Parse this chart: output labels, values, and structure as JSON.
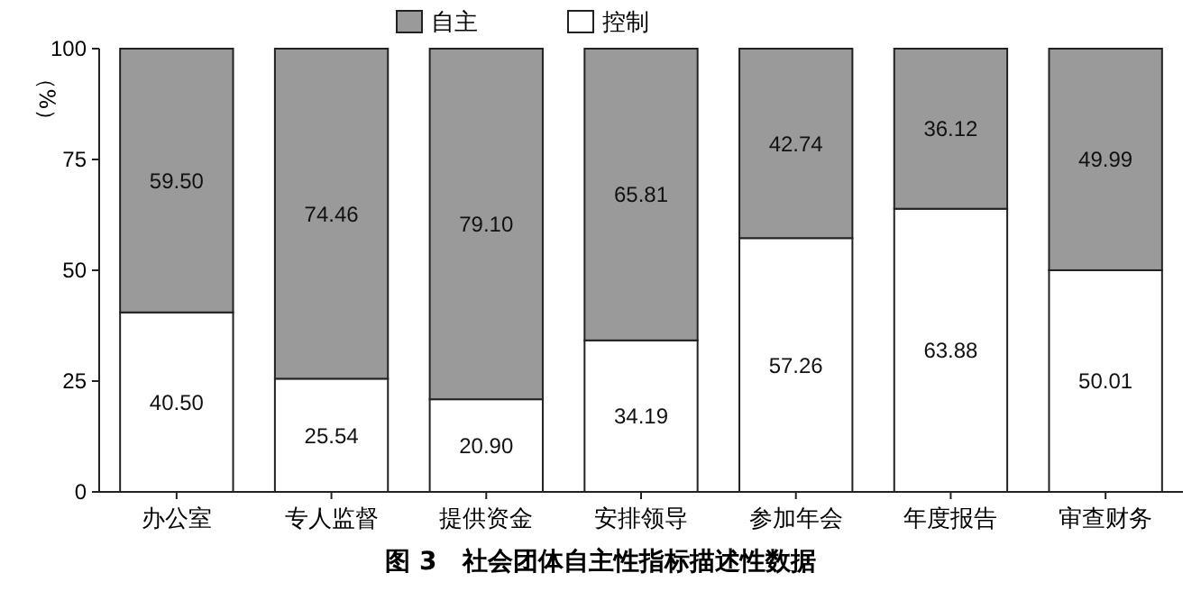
{
  "chart_data": {
    "type": "bar",
    "title": "图 3　社会团体自主性指标描述性数据",
    "ylabel": "（%）",
    "categories": [
      "办公室",
      "专人监督",
      "提供资金",
      "安排领导",
      "参加年会",
      "年度报告",
      "审查财务"
    ],
    "series": [
      {
        "name": "控制",
        "color": "#ffffff",
        "values": [
          40.5,
          25.54,
          20.9,
          34.19,
          57.26,
          63.88,
          50.01
        ],
        "value_labels": [
          "40.50",
          "25.54",
          "20.90",
          "34.19",
          "57.26",
          "63.88",
          "50.01"
        ]
      },
      {
        "name": "自主",
        "color": "#9a9a9a",
        "values": [
          59.5,
          74.46,
          79.1,
          65.81,
          42.74,
          36.12,
          49.99
        ],
        "value_labels": [
          "59.50",
          "74.46",
          "79.10",
          "65.81",
          "42.74",
          "36.12",
          "49.99"
        ]
      }
    ],
    "stacked": true,
    "ylim": [
      0,
      100
    ],
    "yticks": [
      0,
      25,
      50,
      75,
      100
    ],
    "legend": "top",
    "grid": false
  }
}
